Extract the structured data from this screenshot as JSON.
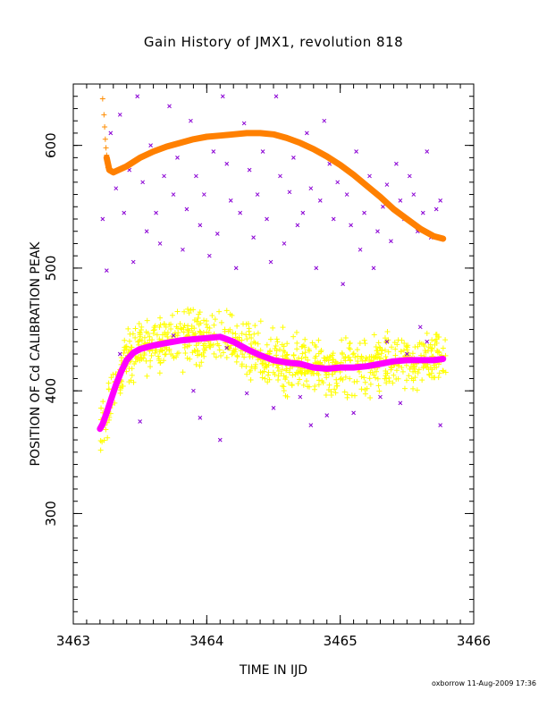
{
  "chart_data": {
    "type": "scatter",
    "title": "Gain History of JMX1, revolution 818",
    "xlabel": "TIME IN IJD",
    "ylabel": "POSITION OF Cd CALIBRATION PEAK",
    "xlim": [
      3463,
      3466
    ],
    "ylim": [
      210,
      650
    ],
    "xticks": [
      3463,
      3464,
      3465,
      3466
    ],
    "yticks": [
      300,
      400,
      500,
      600
    ],
    "grid": false,
    "series": [
      {
        "marker": "x",
        "color": "#8a00d4",
        "x_range": [
          3463.2,
          3465.8
        ],
        "values": [
          [
            3463.22,
            540
          ],
          [
            3463.25,
            498
          ],
          [
            3463.28,
            610
          ],
          [
            3463.32,
            565
          ],
          [
            3463.35,
            625
          ],
          [
            3463.38,
            545
          ],
          [
            3463.42,
            580
          ],
          [
            3463.45,
            505
          ],
          [
            3463.48,
            640
          ],
          [
            3463.52,
            570
          ],
          [
            3463.55,
            530
          ],
          [
            3463.58,
            600
          ],
          [
            3463.62,
            545
          ],
          [
            3463.65,
            520
          ],
          [
            3463.68,
            575
          ],
          [
            3463.72,
            632
          ],
          [
            3463.75,
            560
          ],
          [
            3463.78,
            590
          ],
          [
            3463.82,
            515
          ],
          [
            3463.85,
            548
          ],
          [
            3463.88,
            620
          ],
          [
            3463.92,
            575
          ],
          [
            3463.95,
            535
          ],
          [
            3463.98,
            560
          ],
          [
            3464.02,
            510
          ],
          [
            3464.05,
            595
          ],
          [
            3464.08,
            528
          ],
          [
            3464.12,
            640
          ],
          [
            3464.15,
            585
          ],
          [
            3464.18,
            555
          ],
          [
            3464.22,
            500
          ],
          [
            3464.25,
            545
          ],
          [
            3464.28,
            618
          ],
          [
            3464.32,
            580
          ],
          [
            3464.35,
            525
          ],
          [
            3464.38,
            560
          ],
          [
            3464.42,
            595
          ],
          [
            3464.45,
            540
          ],
          [
            3464.48,
            505
          ],
          [
            3464.52,
            640
          ],
          [
            3464.55,
            575
          ],
          [
            3464.58,
            520
          ],
          [
            3464.62,
            562
          ],
          [
            3464.65,
            590
          ],
          [
            3464.68,
            535
          ],
          [
            3464.72,
            545
          ],
          [
            3464.75,
            610
          ],
          [
            3464.78,
            565
          ],
          [
            3464.82,
            500
          ],
          [
            3464.85,
            555
          ],
          [
            3464.88,
            620
          ],
          [
            3464.92,
            585
          ],
          [
            3464.95,
            540
          ],
          [
            3464.98,
            570
          ],
          [
            3465.02,
            487
          ],
          [
            3465.05,
            560
          ],
          [
            3465.08,
            535
          ],
          [
            3465.12,
            595
          ],
          [
            3465.15,
            515
          ],
          [
            3465.18,
            545
          ],
          [
            3465.22,
            575
          ],
          [
            3465.25,
            500
          ],
          [
            3465.28,
            530
          ],
          [
            3465.32,
            550
          ],
          [
            3465.35,
            568
          ],
          [
            3465.38,
            522
          ],
          [
            3465.42,
            585
          ],
          [
            3465.45,
            555
          ],
          [
            3465.48,
            540
          ],
          [
            3465.52,
            575
          ],
          [
            3465.55,
            560
          ],
          [
            3465.58,
            530
          ],
          [
            3465.62,
            545
          ],
          [
            3465.65,
            595
          ],
          [
            3465.68,
            525
          ],
          [
            3465.72,
            548
          ],
          [
            3465.75,
            555
          ],
          [
            3463.5,
            375
          ],
          [
            3463.9,
            400
          ],
          [
            3464.1,
            360
          ],
          [
            3464.3,
            398
          ],
          [
            3464.5,
            386
          ],
          [
            3464.7,
            395
          ],
          [
            3464.9,
            380
          ],
          [
            3465.1,
            382
          ],
          [
            3465.3,
            395
          ],
          [
            3465.5,
            430
          ],
          [
            3465.6,
            452
          ],
          [
            3465.75,
            372
          ],
          [
            3465.45,
            390
          ],
          [
            3464.78,
            372
          ],
          [
            3463.75,
            445
          ],
          [
            3464.15,
            435
          ],
          [
            3465.65,
            440
          ],
          [
            3465.35,
            440
          ],
          [
            3463.35,
            430
          ],
          [
            3463.95,
            378
          ]
        ]
      },
      {
        "marker": "+",
        "color": "#ffff00",
        "x_range": [
          3463.2,
          3465.8
        ],
        "center": "follows magenta curve",
        "spread": 18
      },
      {
        "marker": "+",
        "color": "#ff8c00",
        "x_range": [
          3463.2,
          3463.3
        ],
        "values": [
          [
            3463.22,
            638
          ],
          [
            3463.23,
            625
          ],
          [
            3463.235,
            615
          ],
          [
            3463.24,
            605
          ],
          [
            3463.245,
            598
          ],
          [
            3463.25,
            592
          ],
          [
            3463.255,
            586
          ],
          [
            3463.26,
            582
          ]
        ]
      }
    ],
    "curves": [
      {
        "color": "#ff8000",
        "points": [
          [
            3463.25,
            590
          ],
          [
            3463.27,
            580
          ],
          [
            3463.3,
            578
          ],
          [
            3463.4,
            583
          ],
          [
            3463.5,
            590
          ],
          [
            3463.6,
            595
          ],
          [
            3463.7,
            599
          ],
          [
            3463.8,
            602
          ],
          [
            3463.9,
            605
          ],
          [
            3464.0,
            607
          ],
          [
            3464.1,
            608
          ],
          [
            3464.2,
            609
          ],
          [
            3464.3,
            610
          ],
          [
            3464.4,
            610
          ],
          [
            3464.5,
            609
          ],
          [
            3464.6,
            606
          ],
          [
            3464.7,
            602
          ],
          [
            3464.8,
            597
          ],
          [
            3464.9,
            591
          ],
          [
            3465.0,
            584
          ],
          [
            3465.1,
            576
          ],
          [
            3465.2,
            567
          ],
          [
            3465.3,
            558
          ],
          [
            3465.4,
            548
          ],
          [
            3465.5,
            540
          ],
          [
            3465.6,
            532
          ],
          [
            3465.7,
            526
          ],
          [
            3465.77,
            524
          ]
        ]
      },
      {
        "color": "#ff00ff",
        "points": [
          [
            3463.2,
            369
          ],
          [
            3463.22,
            373
          ],
          [
            3463.25,
            382
          ],
          [
            3463.28,
            392
          ],
          [
            3463.32,
            405
          ],
          [
            3463.36,
            416
          ],
          [
            3463.4,
            425
          ],
          [
            3463.45,
            431
          ],
          [
            3463.5,
            434
          ],
          [
            3463.6,
            437
          ],
          [
            3463.7,
            439
          ],
          [
            3463.8,
            441
          ],
          [
            3463.9,
            442
          ],
          [
            3464.0,
            443
          ],
          [
            3464.1,
            444
          ],
          [
            3464.2,
            440
          ],
          [
            3464.3,
            434
          ],
          [
            3464.4,
            429
          ],
          [
            3464.5,
            425
          ],
          [
            3464.6,
            423
          ],
          [
            3464.7,
            422
          ],
          [
            3464.8,
            419
          ],
          [
            3464.9,
            418
          ],
          [
            3465.0,
            419
          ],
          [
            3465.1,
            419
          ],
          [
            3465.2,
            420
          ],
          [
            3465.3,
            422
          ],
          [
            3465.4,
            424
          ],
          [
            3465.5,
            425
          ],
          [
            3465.6,
            425
          ],
          [
            3465.7,
            425
          ],
          [
            3465.77,
            426
          ]
        ]
      }
    ],
    "footer": "oxborrow 11-Aug-2009 17:36"
  }
}
